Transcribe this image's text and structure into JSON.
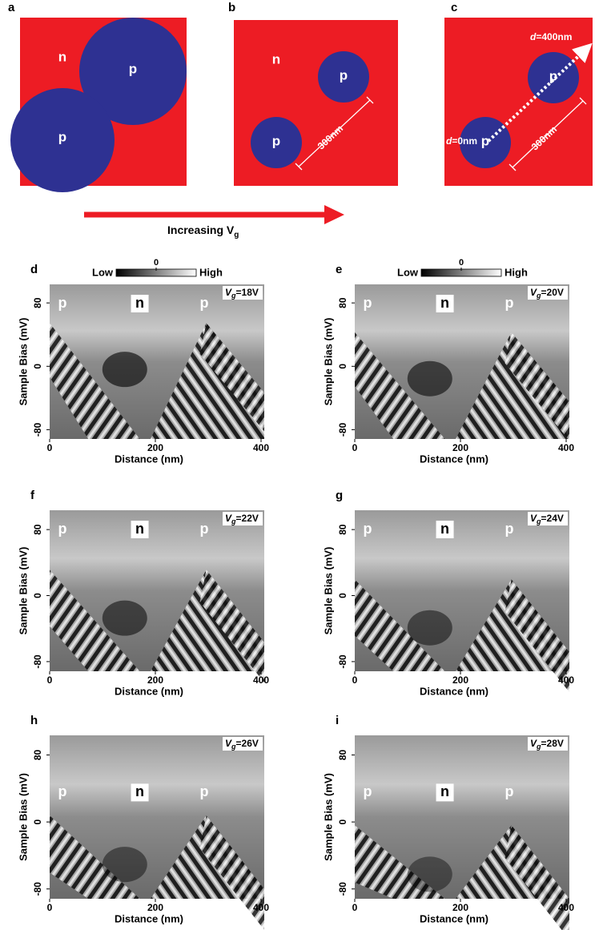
{
  "panels": [
    {
      "letter": "a",
      "regions": [
        "n",
        "p",
        "p"
      ]
    },
    {
      "letter": "b",
      "regions": [
        "n",
        "p",
        "p"
      ],
      "scale": "300nm"
    },
    {
      "letter": "c",
      "regions": [
        "p",
        "p"
      ],
      "scale": "300nm",
      "start": {
        "symbol": "d",
        "text": "=0nm"
      },
      "end": {
        "symbol": "d",
        "text": "=400nm"
      }
    }
  ],
  "arrow": {
    "label": "Increasing V",
    "subscript": "g"
  },
  "colorbar": {
    "low": "Low",
    "zero": "0",
    "high": "High"
  },
  "axes": {
    "xlabel": "Distance (nm)",
    "ylabel": "Sample Bias (mV)",
    "xticks": [
      0,
      200,
      400
    ],
    "yticks": [
      80,
      0,
      -80
    ]
  },
  "gate_symbol": "V",
  "gate_subscript": "g",
  "maps": [
    {
      "letter": "d",
      "gate": "=18V",
      "regions": [
        "p",
        "n",
        "p"
      ]
    },
    {
      "letter": "e",
      "gate": "=20V",
      "regions": [
        "p",
        "n",
        "p"
      ]
    },
    {
      "letter": "f",
      "gate": "=22V",
      "regions": [
        "p",
        "n",
        "p"
      ]
    },
    {
      "letter": "g",
      "gate": "=24V",
      "regions": [
        "p",
        "n",
        "p"
      ]
    },
    {
      "letter": "h",
      "gate": "=26V",
      "regions": [
        "p",
        "n",
        "p"
      ]
    },
    {
      "letter": "i",
      "gate": "=28V",
      "regions": [
        "p",
        "n",
        "p"
      ]
    }
  ]
}
